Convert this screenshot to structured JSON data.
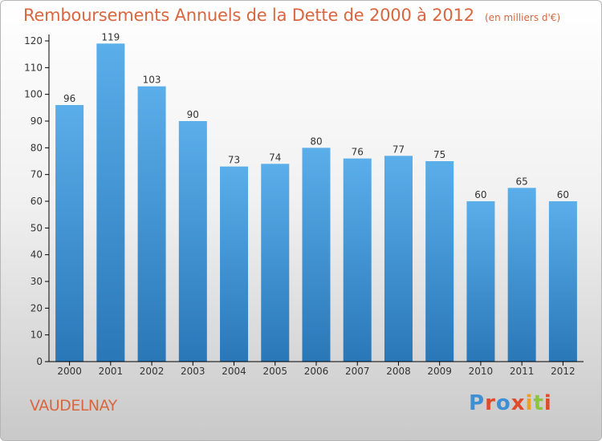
{
  "header": {
    "title": "Remboursements Annuels de la Dette de 2000 à 2012",
    "unit": "(en milliers d'€)"
  },
  "footer": {
    "commune": "VAUDELNAY",
    "brand": "Proxiti"
  },
  "colors": {
    "title": "#d9663e",
    "bar_top": "#5aaeea",
    "bar_bottom": "#2a77b8",
    "axis": "#000000",
    "brand_colors": [
      "#3f8fd4",
      "#8cc63f",
      "#f0a020",
      "#e04b2c"
    ]
  },
  "chart_data": {
    "type": "bar",
    "title": "Remboursements Annuels de la Dette de 2000 à 2012",
    "xlabel": "",
    "ylabel": "",
    "categories": [
      "2000",
      "2001",
      "2002",
      "2003",
      "2004",
      "2005",
      "2006",
      "2007",
      "2008",
      "2009",
      "2010",
      "2011",
      "2012"
    ],
    "values": [
      96,
      119,
      103,
      90,
      73,
      74,
      80,
      76,
      77,
      75,
      60,
      65,
      60
    ],
    "ylim": [
      0,
      120
    ],
    "yticks": [
      0,
      10,
      20,
      30,
      40,
      50,
      60,
      70,
      80,
      90,
      100,
      110,
      120
    ],
    "data_labels": true,
    "grid": false
  }
}
